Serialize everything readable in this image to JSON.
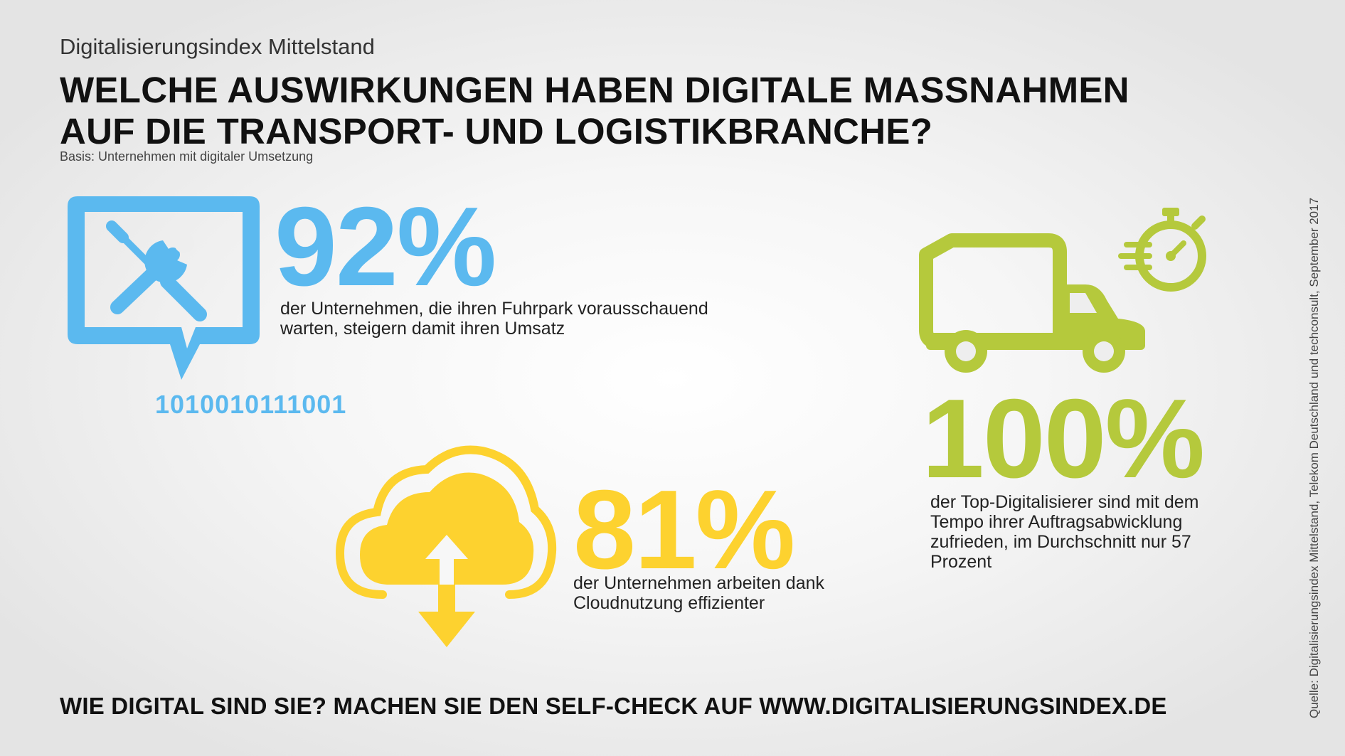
{
  "header": {
    "kicker": "Digitalisierungsindex Mittelstand",
    "headline_line1": "WELCHE AUSWIRKUNGEN HABEN DIGITALE MASSNAHMEN",
    "headline_line2": "AUF DIE TRANSPORT- UND LOGISTIKBRANCHE?",
    "basis": "Basis: Unternehmen mit digitaler Umsetzung"
  },
  "stats": {
    "fleet": {
      "value": "92%",
      "description": "der Unternehmen, die ihren Fuhrpark vorausschauend warten, steigern damit ihren Umsatz",
      "binary": "1010010111001",
      "icon": "wrench-screwdriver-chat-icon",
      "color": "#5bb9ef"
    },
    "cloud": {
      "value": "81%",
      "description": "der Unternehmen arbeiten dank Cloudnutzung effizienter",
      "icon": "cloud-upload-download-icon",
      "color": "#fdd22f"
    },
    "speed": {
      "value": "100%",
      "description": "der Top-Digitalisierer sind mit dem Tempo ihrer Auftragsabwicklung zufrieden, im Durchschnitt nur 57 Prozent",
      "icon": "truck-stopwatch-icon",
      "color": "#b5c93c"
    }
  },
  "footer": {
    "cta": "WIE DIGITAL SIND SIE? MACHEN SIE DEN SELF-CHECK AUF WWW.DIGITALISIERUNGSINDEX.DE",
    "source": "Quelle: Digitalisierungsindex Mittelstand, Telekom Deutschland und techconsult, September 2017"
  }
}
